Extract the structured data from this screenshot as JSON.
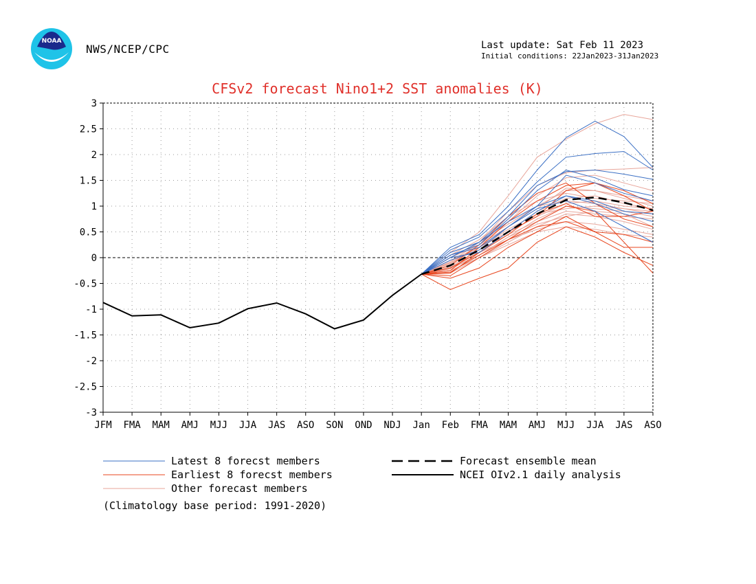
{
  "header": {
    "agency": "NWS/NCEP/CPC",
    "last_update": "Last update: Sat Feb 11 2023",
    "initial_conditions": "Initial conditions: 22Jan2023-31Jan2023",
    "logo_text": "NOAA"
  },
  "colors": {
    "latest": "#3a6fc4",
    "earliest": "#e8461e",
    "other": "#e8a59a",
    "mean": "#000000",
    "analysis": "#000000",
    "title": "#e0302a"
  },
  "chart_data": {
    "type": "line",
    "title": "CFSv2 forecast Nino1+2 SST anomalies (K)",
    "categories": [
      "JFM",
      "FMA",
      "MAM",
      "AMJ",
      "MJJ",
      "JJA",
      "JAS",
      "ASO",
      "SON",
      "OND",
      "NDJ",
      "Jan",
      "Feb",
      "FMA",
      "MAM",
      "AMJ",
      "MJJ",
      "JJA",
      "JAS",
      "ASO"
    ],
    "ylim": [
      -3,
      3
    ],
    "yticks": [
      3,
      2.5,
      2,
      1.5,
      1,
      0.5,
      0,
      -0.5,
      -1,
      -1.5,
      -2,
      -2.5,
      -3
    ],
    "ytick_labels": [
      "3",
      "2.5",
      "2",
      "1.5",
      "1",
      "0.5",
      "0",
      "-0.5",
      "-1",
      "-1.5",
      "-2",
      "-2.5",
      "-3"
    ],
    "grid": true,
    "zero_line": true,
    "forecast_start_index": 11,
    "analysis": {
      "name": "NCEI OIv2.1 daily analysis",
      "values": [
        -0.87,
        -1.13,
        -1.11,
        -1.36,
        -1.27,
        -0.99,
        -0.88,
        -1.09,
        -1.38,
        -1.21,
        -0.73,
        -0.32
      ]
    },
    "ensemble_mean": {
      "name": "Forecast ensemble mean",
      "values": [
        -0.32,
        -0.15,
        0.15,
        0.5,
        0.85,
        1.12,
        1.17,
        1.07,
        0.92
      ]
    },
    "latest_members": {
      "name": "Latest 8 forecst members",
      "values": [
        [
          -0.32,
          0.2,
          0.45,
          1.0,
          1.7,
          2.33,
          2.65,
          2.35,
          1.75
        ],
        [
          -0.32,
          0.15,
          0.4,
          0.9,
          1.47,
          1.95,
          2.02,
          2.06,
          1.7
        ],
        [
          -0.32,
          0.1,
          0.3,
          0.8,
          1.4,
          1.67,
          1.7,
          1.62,
          1.52
        ],
        [
          -0.32,
          0.05,
          0.25,
          0.75,
          1.3,
          1.7,
          1.55,
          1.32,
          1.2
        ],
        [
          -0.32,
          0.0,
          0.3,
          0.7,
          1.0,
          1.6,
          1.45,
          1.25,
          1.1
        ],
        [
          -0.32,
          0.05,
          0.2,
          0.6,
          1.0,
          1.2,
          1.05,
          0.85,
          0.7
        ],
        [
          -0.32,
          -0.05,
          0.15,
          0.6,
          0.95,
          1.1,
          0.9,
          0.6,
          0.3
        ],
        [
          -0.32,
          0.0,
          0.1,
          0.5,
          0.9,
          1.2,
          1.1,
          0.9,
          0.85
        ]
      ]
    },
    "earliest_members": {
      "name": "Earliest 8 forecst members",
      "values": [
        [
          -0.32,
          -0.62,
          -0.4,
          -0.2,
          0.3,
          0.6,
          0.4,
          0.1,
          -0.15
        ],
        [
          -0.32,
          -0.4,
          -0.2,
          0.2,
          0.5,
          0.8,
          0.5,
          0.2,
          0.2
        ],
        [
          -0.32,
          -0.35,
          0.0,
          0.35,
          0.7,
          1.0,
          0.9,
          0.3,
          -0.3
        ],
        [
          -0.32,
          -0.3,
          0.1,
          0.5,
          0.8,
          1.3,
          1.45,
          1.2,
          0.9
        ],
        [
          -0.32,
          -0.25,
          0.2,
          0.7,
          1.1,
          1.4,
          1.45,
          1.3,
          1.05
        ],
        [
          -0.32,
          -0.2,
          0.1,
          0.45,
          0.85,
          1.05,
          0.8,
          0.8,
          0.9
        ],
        [
          -0.32,
          -0.28,
          0.05,
          0.35,
          0.6,
          0.7,
          0.5,
          0.45,
          0.3
        ],
        [
          -0.32,
          -0.15,
          0.25,
          0.8,
          1.25,
          1.45,
          1.05,
          0.75,
          0.6
        ]
      ]
    },
    "other_members": {
      "name": "Other forecast members",
      "values": [
        [
          -0.32,
          0.1,
          0.5,
          1.2,
          1.95,
          2.3,
          2.6,
          2.78,
          2.68
        ],
        [
          -0.32,
          0.0,
          0.3,
          0.9,
          1.4,
          1.65,
          1.7,
          1.72,
          1.75
        ],
        [
          -0.32,
          -0.1,
          0.25,
          0.7,
          1.2,
          1.55,
          1.6,
          1.45,
          1.3
        ],
        [
          -0.32,
          -0.05,
          0.2,
          0.6,
          1.0,
          1.3,
          1.3,
          1.15,
          1.0
        ],
        [
          -0.32,
          -0.15,
          0.1,
          0.5,
          0.9,
          1.15,
          1.2,
          1.05,
          0.95
        ],
        [
          -0.32,
          -0.2,
          0.05,
          0.4,
          0.75,
          1.0,
          0.95,
          0.9,
          0.8
        ],
        [
          -0.32,
          -0.25,
          0.0,
          0.3,
          0.6,
          0.85,
          0.8,
          0.7,
          0.55
        ],
        [
          -0.32,
          -0.1,
          0.2,
          0.55,
          0.85,
          0.95,
          1.0,
          0.95,
          0.85
        ],
        [
          -0.32,
          -0.05,
          0.15,
          0.45,
          0.7,
          0.9,
          0.85,
          0.8,
          0.75
        ],
        [
          -0.32,
          -0.18,
          0.1,
          0.35,
          0.55,
          0.7,
          0.65,
          0.55,
          0.45
        ],
        [
          -0.32,
          0.05,
          0.35,
          0.8,
          1.1,
          1.25,
          1.15,
          1.1,
          1.05
        ],
        [
          -0.32,
          -0.12,
          0.2,
          0.5,
          0.8,
          1.05,
          1.1,
          1.0,
          0.95
        ],
        [
          -0.32,
          -0.22,
          0.05,
          0.4,
          0.65,
          0.8,
          0.9,
          0.85,
          0.6
        ],
        [
          -0.32,
          -0.08,
          0.3,
          0.65,
          1.0,
          1.1,
          1.05,
          0.95,
          0.9
        ],
        [
          -0.32,
          -0.3,
          0.0,
          0.25,
          0.5,
          0.6,
          0.55,
          0.45,
          0.4
        ],
        [
          -0.32,
          0.0,
          0.25,
          0.6,
          0.95,
          1.35,
          1.3,
          1.2,
          1.1
        ]
      ]
    },
    "legend": [
      {
        "key": "latest",
        "label": "Latest 8 forecst members",
        "style": "thin-blue"
      },
      {
        "key": "earliest",
        "label": "Earliest 8 forecst members",
        "style": "thin-red"
      },
      {
        "key": "other",
        "label": "Other forecast members",
        "style": "thin-pink"
      },
      {
        "key": "mean",
        "label": "Forecast ensemble mean",
        "style": "dashed-black"
      },
      {
        "key": "analysis",
        "label": "NCEI OIv2.1 daily analysis",
        "style": "solid-black"
      }
    ],
    "footnote": "(Climatology base period: 1991-2020)"
  }
}
